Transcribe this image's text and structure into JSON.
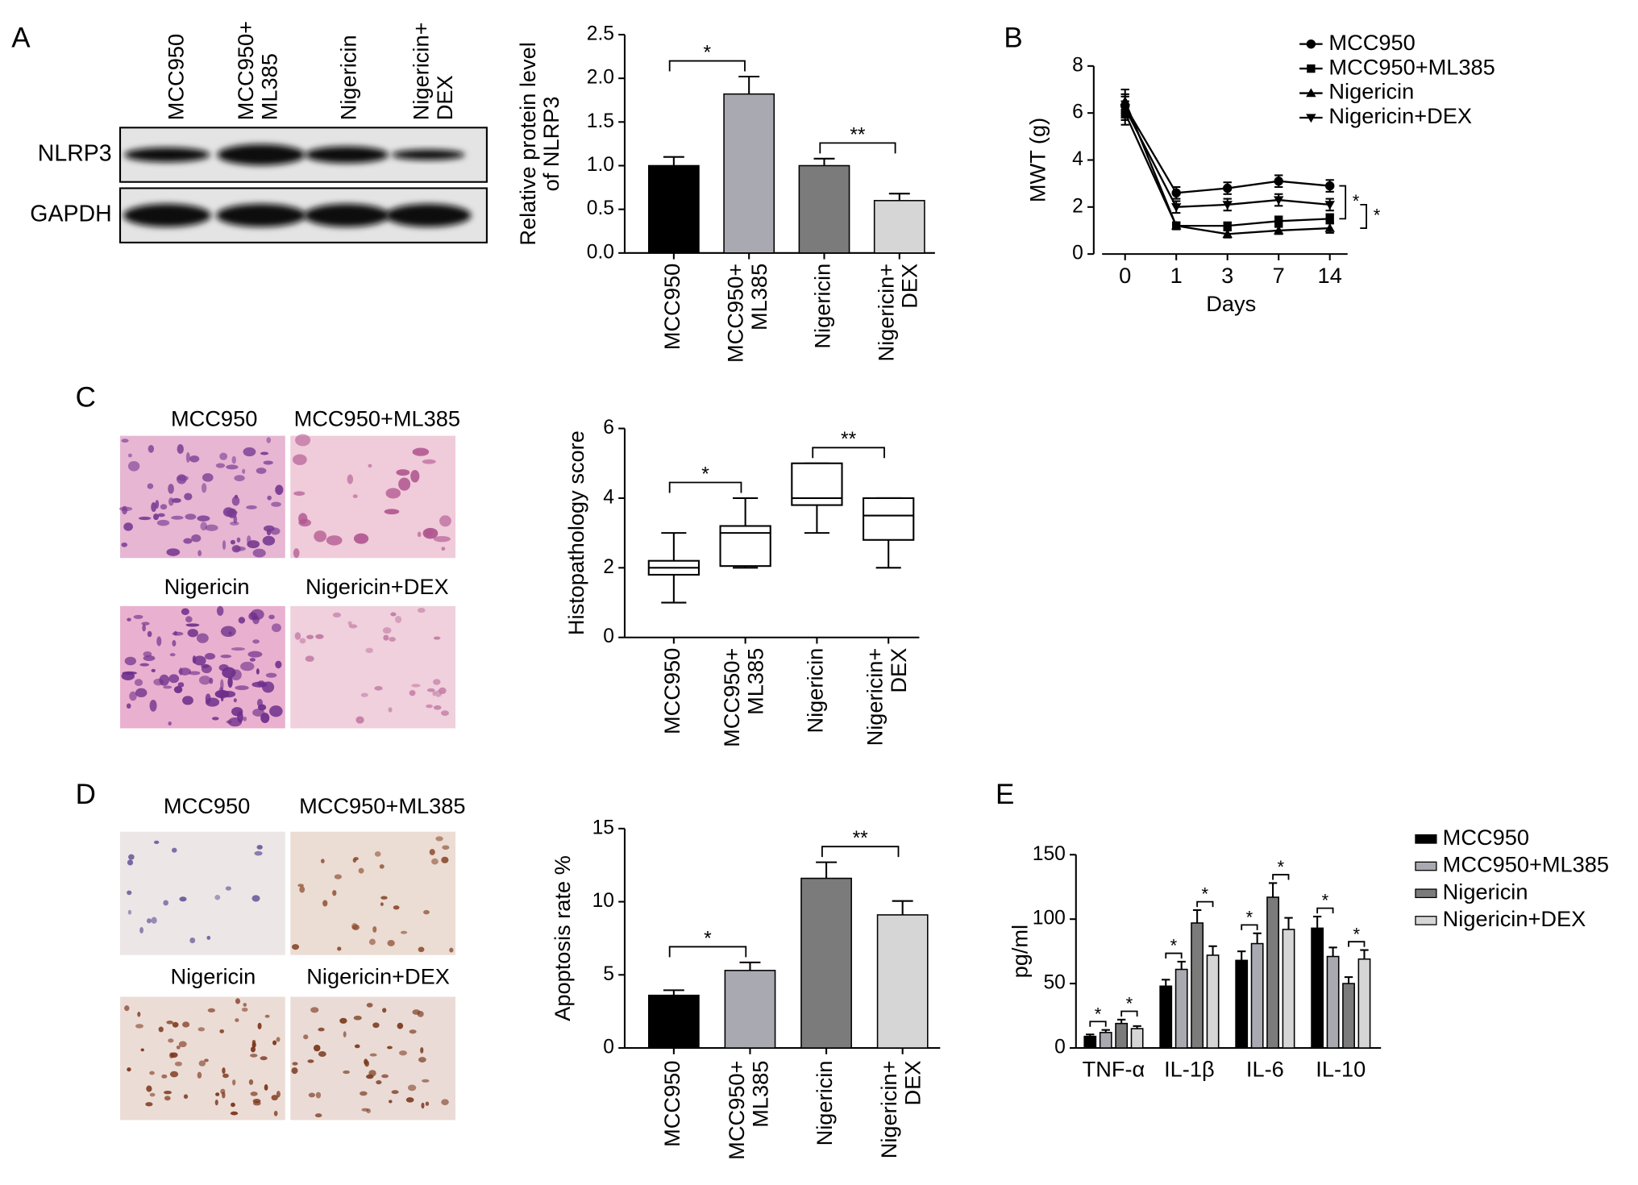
{
  "panels": {
    "letters": [
      "A",
      "B",
      "C",
      "D",
      "E"
    ],
    "blot": {
      "columns": [
        [
          "MCC950"
        ],
        [
          "MCC950+",
          "ML385"
        ],
        [
          "Nigericin"
        ],
        [
          "Nigericin+",
          "DEX"
        ]
      ],
      "rows": [
        "NLRP3",
        "GAPDH"
      ]
    },
    "histology": [
      "MCC950",
      "MCC950+ML385",
      "Nigericin",
      "Nigericin+DEX"
    ],
    "ihc": [
      "MCC950",
      "MCC950+ML385",
      "Nigericin",
      "Nigericin+DEX"
    ]
  },
  "chart_data": [
    {
      "type": "bar",
      "ylabel": [
        "Relative protein level",
        "of NLRP3"
      ],
      "categories": [
        [
          "MCC950"
        ],
        [
          "MCC950+",
          "ML385"
        ],
        [
          "Nigericin"
        ],
        [
          "Nigericin+",
          "DEX"
        ]
      ],
      "values": [
        1.0,
        1.82,
        1.0,
        0.6
      ],
      "errors": [
        0.1,
        0.2,
        0.08,
        0.08
      ],
      "colors": [
        "#000000",
        "#a9a9b1",
        "#7b7b7b",
        "#d6d6d6"
      ],
      "ylim": [
        0,
        2.5
      ],
      "yticks": [
        {
          "value": 0,
          "label": "0.0"
        },
        0.5,
        {
          "value": 1,
          "label": "1.0"
        },
        1.5,
        {
          "value": 2,
          "label": "2.0"
        },
        2.5
      ],
      "annotations": [
        {
          "from": 0,
          "to": 1,
          "label": "*"
        },
        {
          "from": 2,
          "to": 3,
          "label": "**"
        }
      ]
    },
    {
      "type": "line",
      "ylabel": [
        "MWT (g)"
      ],
      "xlabel": "Days",
      "categories": [
        "0",
        "1",
        "3",
        "7",
        "14"
      ],
      "series": [
        {
          "name": "MCC950",
          "color": "#000000",
          "marker": "circle",
          "values": [
            6.3,
            2.6,
            2.8,
            3.1,
            2.9
          ],
          "errors": [
            0.5,
            0.25,
            0.25,
            0.25,
            0.25
          ]
        },
        {
          "name": "MCC950+ML385",
          "color": "#000000",
          "marker": "square",
          "values": [
            6.0,
            1.2,
            1.2,
            1.4,
            1.5
          ],
          "errors": [
            0.5,
            0.15,
            0.15,
            0.2,
            0.2
          ]
        },
        {
          "name": "Nigericin",
          "color": "#000000",
          "marker": "triangle-up",
          "values": [
            6.5,
            1.2,
            0.85,
            1.0,
            1.1
          ],
          "errors": [
            0.5,
            0.15,
            0.15,
            0.15,
            0.2
          ]
        },
        {
          "name": "Nigericin+DEX",
          "color": "#000000",
          "marker": "triangle-down",
          "values": [
            6.2,
            2.0,
            2.1,
            2.3,
            2.1
          ],
          "errors": [
            0.5,
            0.25,
            0.25,
            0.25,
            0.25
          ]
        }
      ],
      "ylim": [
        0,
        8
      ],
      "yticks": [
        0,
        2,
        4,
        6,
        8
      ],
      "annotations": [
        {
          "series": [
            0,
            1
          ],
          "label": "*"
        },
        {
          "series": [
            3,
            2
          ],
          "label": "*"
        }
      ]
    },
    {
      "type": "box",
      "ylabel": [
        "Histopathology score"
      ],
      "categories": [
        [
          "MCC950"
        ],
        [
          "MCC950+",
          "ML385"
        ],
        [
          "Nigericin"
        ],
        [
          "Nigericin+",
          "DEX"
        ]
      ],
      "boxes": [
        [
          1,
          1.8,
          2,
          2.2,
          3
        ],
        [
          2,
          2.05,
          3,
          3.2,
          4
        ],
        [
          3,
          3.8,
          4,
          5,
          5
        ],
        [
          2,
          2.8,
          3.5,
          4,
          4
        ]
      ],
      "ylim": [
        0,
        6
      ],
      "yticks": [
        0,
        2,
        4,
        6
      ],
      "annotations": [
        {
          "from": 0,
          "to": 1,
          "label": "*"
        },
        {
          "from": 2,
          "to": 3,
          "label": "**"
        }
      ]
    },
    {
      "type": "bar",
      "ylabel": [
        "Apoptosis rate %"
      ],
      "categories": [
        [
          "MCC950"
        ],
        [
          "MCC950+",
          "ML385"
        ],
        [
          "Nigericin"
        ],
        [
          "Nigericin+",
          "DEX"
        ]
      ],
      "values": [
        3.6,
        5.3,
        11.6,
        9.1
      ],
      "errors": [
        0.35,
        0.55,
        1.1,
        0.95
      ],
      "colors": [
        "#000000",
        "#a9a9b1",
        "#7b7b7b",
        "#d6d6d6"
      ],
      "ylim": [
        0,
        15
      ],
      "yticks": [
        0,
        5,
        10,
        15
      ],
      "annotations": [
        {
          "from": 0,
          "to": 1,
          "label": "*"
        },
        {
          "from": 2,
          "to": 3,
          "label": "**"
        }
      ]
    },
    {
      "type": "bar",
      "ylabel": [
        "pg/ml"
      ],
      "categories": [
        "TNF-α",
        "IL-1β",
        "IL-6",
        "IL-10"
      ],
      "series": [
        {
          "name": "MCC950",
          "color": "#000000",
          "values": [
            9,
            48,
            68,
            93
          ],
          "errors": [
            1.5,
            5,
            7,
            9
          ]
        },
        {
          "name": "MCC950+ML385",
          "color": "#a9a9b1",
          "values": [
            12,
            61,
            81,
            71
          ],
          "errors": [
            2,
            6,
            8,
            7
          ]
        },
        {
          "name": "Nigericin",
          "color": "#7b7b7b",
          "values": [
            19,
            97,
            117,
            50
          ],
          "errors": [
            3,
            10,
            11,
            5
          ]
        },
        {
          "name": "Nigericin+DEX",
          "color": "#d6d6d6",
          "values": [
            15,
            72,
            92,
            69
          ],
          "errors": [
            2,
            7,
            9,
            7
          ]
        }
      ],
      "ylim": [
        0,
        150
      ],
      "yticks": [
        0,
        50,
        100,
        150
      ],
      "annotations": [
        {
          "group": 0,
          "from": 0,
          "to": 1,
          "label": "*"
        },
        {
          "group": 0,
          "from": 2,
          "to": 3,
          "label": "*"
        },
        {
          "group": 1,
          "from": 0,
          "to": 1,
          "label": "*"
        },
        {
          "group": 1,
          "from": 2,
          "to": 3,
          "label": "*"
        },
        {
          "group": 2,
          "from": 0,
          "to": 1,
          "label": "*"
        },
        {
          "group": 2,
          "from": 2,
          "to": 3,
          "label": "*"
        },
        {
          "group": 3,
          "from": 0,
          "to": 1,
          "label": "*"
        },
        {
          "group": 3,
          "from": 2,
          "to": 3,
          "label": "*"
        }
      ]
    }
  ]
}
